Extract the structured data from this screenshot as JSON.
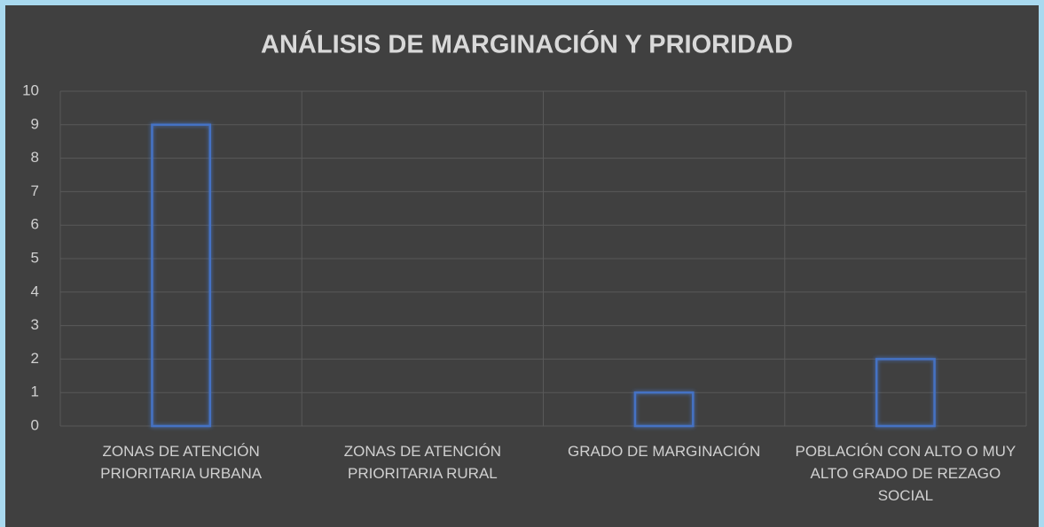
{
  "chart_data": {
    "type": "bar",
    "title": "ANÁLISIS DE MARGINACIÓN Y PRIORIDAD",
    "categories": [
      "ZONAS DE ATENCIÓN PRIORITARIA URBANA",
      "ZONAS DE ATENCIÓN PRIORITARIA RURAL",
      "GRADO DE MARGINACIÓN",
      "POBLACIÓN CON ALTO O MUY ALTO GRADO DE REZAGO SOCIAL"
    ],
    "values": [
      9,
      0,
      1,
      2
    ],
    "color": "#4472c4",
    "ylim": [
      0,
      10
    ],
    "yticks": [
      0,
      1,
      2,
      3,
      4,
      5,
      6,
      7,
      8,
      9,
      10
    ],
    "grid": true
  }
}
